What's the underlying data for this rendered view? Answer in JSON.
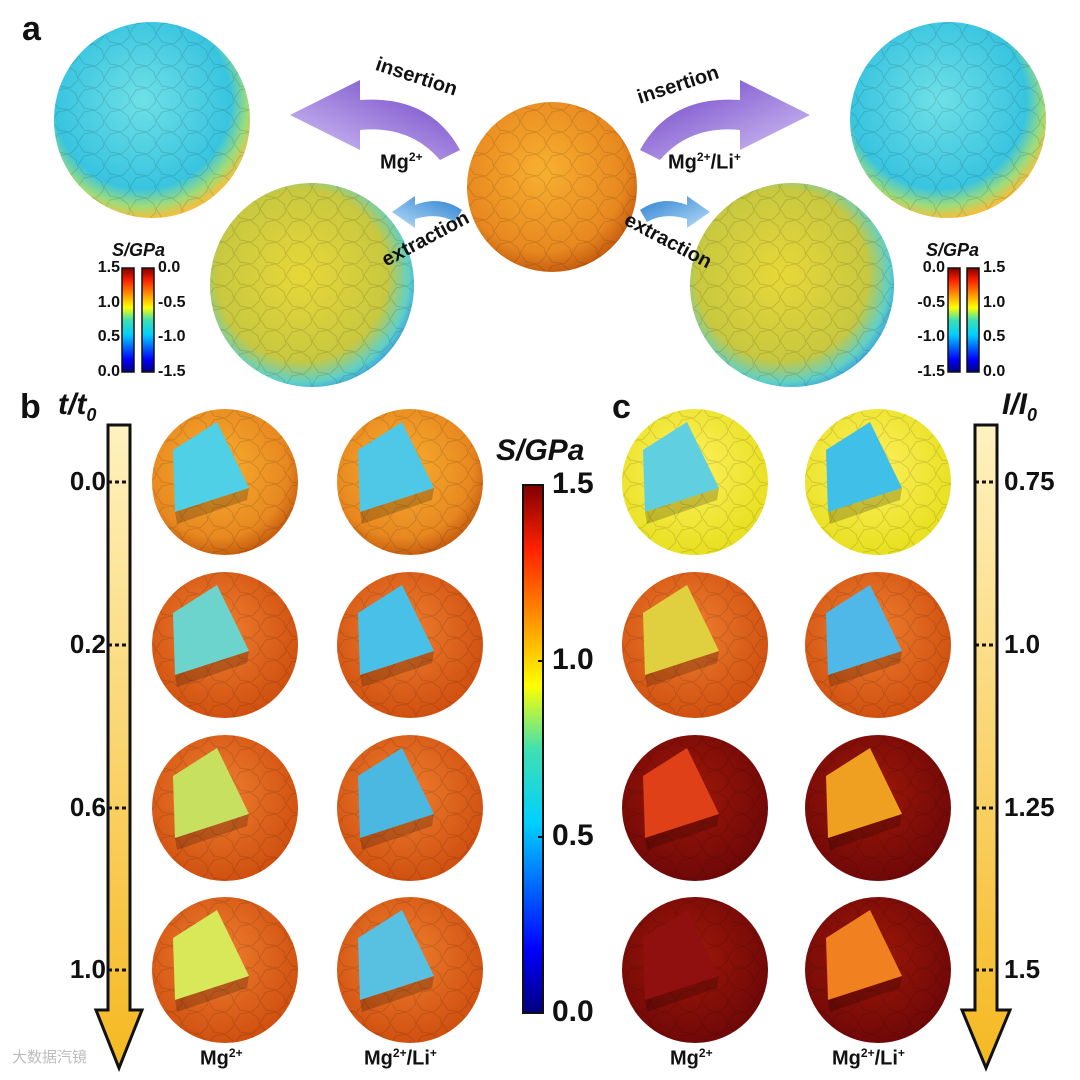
{
  "panels": {
    "a": "a",
    "b": "b",
    "c": "c"
  },
  "panel_a": {
    "left": {
      "arrow_top": "insertion",
      "ion": "Mg",
      "ion_sup": "2+",
      "arrow_bottom": "extraction"
    },
    "right": {
      "arrow_top": "insertion",
      "ion": "Mg",
      "ion_sup": "2+",
      "ion_suffix": "/Li",
      "ion_suffix_sup": "+",
      "arrow_bottom": "extraction"
    },
    "colorbar_title": "S/GPa",
    "left_bar_ticks": [
      "1.5",
      "1.0",
      "0.5",
      "0.0"
    ],
    "right_bar_ticks": [
      "0.0",
      "-0.5",
      "-1.0",
      "-1.5"
    ],
    "right_pair_neg_ticks": [
      "0.0",
      "-0.5",
      "-1.0",
      "-1.5"
    ],
    "right_pair_pos_ticks": [
      "1.5",
      "1.0",
      "0.5",
      "0.0"
    ]
  },
  "panel_b": {
    "axis_label": "t/t",
    "axis_label_sub": "0",
    "ticks": [
      "0.0",
      "0.2",
      "0.6",
      "1.0"
    ],
    "columns": [
      {
        "text": "Mg",
        "sup": "2+",
        "suffix": "",
        "suffix_sup": ""
      },
      {
        "text": "Mg",
        "sup": "2+",
        "suffix": "/Li",
        "suffix_sup": "+"
      }
    ]
  },
  "central_colorbar": {
    "title": "S/GPa",
    "ticks": [
      "1.5",
      "1.0",
      "0.5",
      "0.0"
    ],
    "range": [
      0.0,
      1.5
    ]
  },
  "panel_c": {
    "axis_label": "I/I",
    "axis_label_sub": "0",
    "ticks": [
      "0.75",
      "1.0",
      "1.25",
      "1.5"
    ],
    "columns": [
      {
        "text": "Mg",
        "sup": "2+",
        "suffix": "",
        "suffix_sup": ""
      },
      {
        "text": "Mg",
        "sup": "2+",
        "suffix": "/Li",
        "suffix_sup": "+"
      }
    ]
  },
  "watermark": "大数据汽镜",
  "colors": {
    "arrow_gold": "#f5b820",
    "arrow_purple": "#8a5ad6",
    "arrow_blue": "#4aa8e8"
  }
}
